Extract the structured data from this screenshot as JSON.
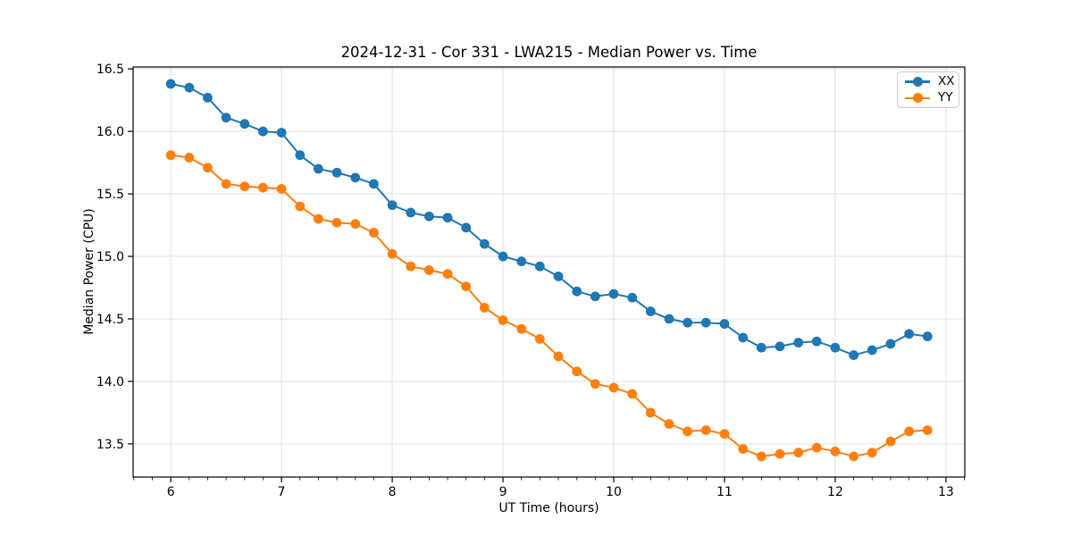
{
  "title": "2024-12-31 - Cor 331 - LWA215 - Median Power vs. Time",
  "chart_data": {
    "type": "line",
    "title": "2024-12-31 - Cor 331 - LWA215 - Median Power vs. Time",
    "xlabel": "UT Time (hours)",
    "ylabel": "Median Power (CPU)",
    "xlim": [
      5.66,
      13.17
    ],
    "ylim": [
      13.235,
      16.515
    ],
    "x_major_ticks": [
      6,
      7,
      8,
      9,
      10,
      11,
      12,
      13
    ],
    "x_minor_step_hours": 0.1667,
    "y_major_ticks": [
      13.5,
      14.0,
      14.5,
      15.0,
      15.5,
      16.0,
      16.5
    ],
    "grid": true,
    "legend_position": "upper right",
    "marker": "o",
    "x": [
      6.0,
      6.167,
      6.333,
      6.5,
      6.667,
      6.833,
      7.0,
      7.167,
      7.333,
      7.5,
      7.667,
      7.833,
      8.0,
      8.167,
      8.333,
      8.5,
      8.667,
      8.833,
      9.0,
      9.167,
      9.333,
      9.5,
      9.667,
      9.833,
      10.0,
      10.167,
      10.333,
      10.5,
      10.667,
      10.833,
      11.0,
      11.167,
      11.333,
      11.5,
      11.667,
      11.833,
      12.0,
      12.167,
      12.333,
      12.5,
      12.667,
      12.833
    ],
    "series": [
      {
        "name": "XX",
        "color": "#1f77b4",
        "values": [
          16.38,
          16.35,
          16.27,
          16.11,
          16.06,
          16.0,
          15.99,
          15.81,
          15.7,
          15.67,
          15.63,
          15.58,
          15.41,
          15.35,
          15.32,
          15.31,
          15.23,
          15.1,
          15.0,
          14.96,
          14.92,
          14.84,
          14.72,
          14.68,
          14.7,
          14.67,
          14.56,
          14.5,
          14.47,
          14.47,
          14.46,
          14.35,
          14.27,
          14.28,
          14.31,
          14.32,
          14.27,
          14.21,
          14.25,
          14.3,
          14.38,
          14.36
        ]
      },
      {
        "name": "YY",
        "color": "#ff7f0e",
        "values": [
          15.81,
          15.79,
          15.71,
          15.58,
          15.56,
          15.55,
          15.54,
          15.4,
          15.3,
          15.27,
          15.26,
          15.19,
          15.02,
          14.92,
          14.89,
          14.86,
          14.76,
          14.59,
          14.49,
          14.42,
          14.34,
          14.2,
          14.08,
          13.98,
          13.95,
          13.9,
          13.75,
          13.66,
          13.6,
          13.61,
          13.58,
          13.46,
          13.4,
          13.42,
          13.43,
          13.47,
          13.44,
          13.4,
          13.43,
          13.52,
          13.6,
          13.61
        ]
      }
    ],
    "style": {
      "grid_color": "#e0e0e0",
      "spine_color": "#000000",
      "background": "#ffffff",
      "line_width": 2,
      "marker_radius": 5.4
    }
  }
}
